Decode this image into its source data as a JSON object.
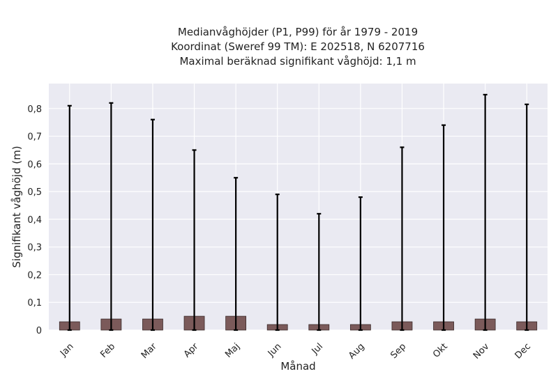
{
  "chart_data": {
    "type": "bar",
    "title_lines": [
      "Medianvåghöjder (P1, P99) för år 1979 - 2019",
      "Koordinat (Sweref 99 TM): E 202518, N 6207716",
      "Maximal beräknad signifikant våghöjd: 1,1 m"
    ],
    "xlabel": "Månad",
    "ylabel": "Signifikant våghöjd (m)",
    "categories": [
      "Jan",
      "Feb",
      "Mar",
      "Apr",
      "Maj",
      "Jun",
      "Jul",
      "Aug",
      "Sep",
      "Okt",
      "Nov",
      "Dec"
    ],
    "values": [
      0.03,
      0.04,
      0.04,
      0.05,
      0.05,
      0.02,
      0.02,
      0.02,
      0.03,
      0.03,
      0.04,
      0.03
    ],
    "error_low": [
      0.0,
      0.0,
      0.0,
      0.0,
      0.0,
      0.0,
      0.0,
      0.0,
      0.0,
      0.0,
      0.0,
      0.0
    ],
    "error_high": [
      0.81,
      0.82,
      0.76,
      0.65,
      0.55,
      0.49,
      0.42,
      0.48,
      0.66,
      0.74,
      0.85,
      0.815
    ],
    "ylim": [
      0,
      0.89
    ],
    "yticks": [
      0,
      0.1,
      0.2,
      0.3,
      0.4,
      0.5,
      0.6,
      0.7,
      0.8
    ],
    "ytick_labels": [
      "0",
      "0,1",
      "0,2",
      "0,3",
      "0,4",
      "0,5",
      "0,6",
      "0,7",
      "0,8"
    ],
    "grid": true,
    "colors": {
      "bar": "#7b5a5a",
      "bar_edge": "#3a2a2a",
      "plot_background": "#eaeaf2",
      "grid": "#ffffff",
      "errorbar": "#000000"
    }
  }
}
